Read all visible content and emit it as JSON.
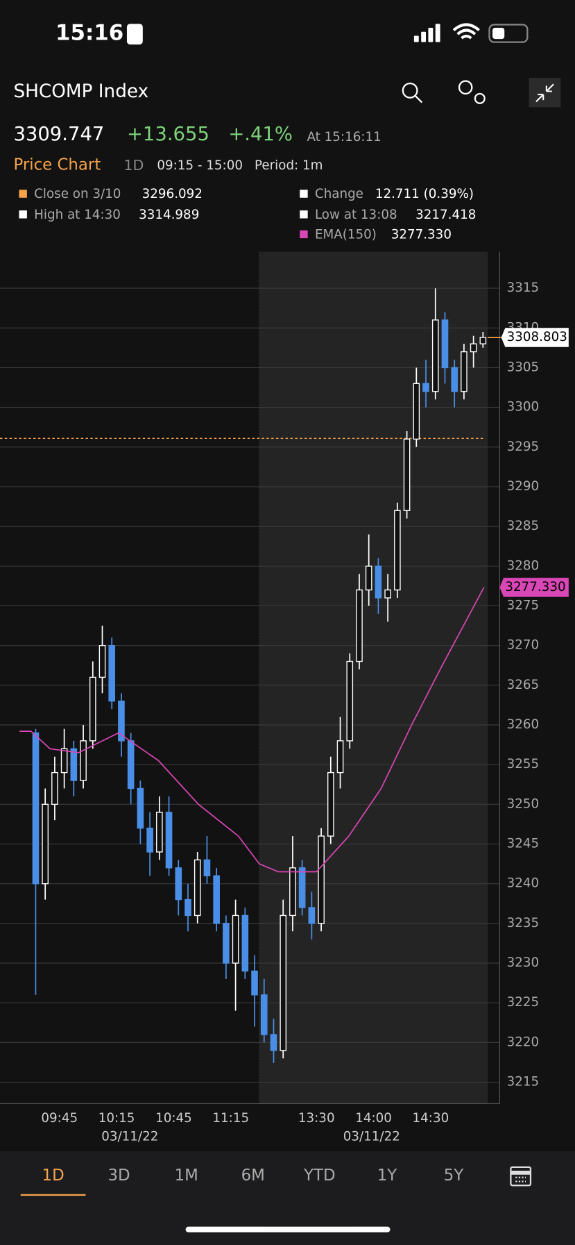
{
  "status": {
    "time": "15:16"
  },
  "header": {
    "title": "SHCOMP Index"
  },
  "quote": {
    "price": "3309.747",
    "change": "+13.655",
    "change_pct": "+.41%",
    "as_of": "At 15:16:11"
  },
  "chart_header": {
    "title": "Price Chart",
    "range": "1D",
    "session": "09:15 - 15:00",
    "period": "Period: 1m"
  },
  "legend": {
    "close_label": "Close on 3/10",
    "change_label": "Change",
    "change_value": "12.711 (0.39%)",
    "high_label": "High at 14:30",
    "low_label": "Low at 13:08"
  },
  "chart_data": {
    "type": "candlestick",
    "x": [
      0,
      5,
      10,
      15,
      20,
      25,
      30,
      35,
      40,
      45,
      50,
      55,
      60,
      65,
      70,
      75,
      80,
      85,
      90,
      95,
      100,
      105,
      110,
      115,
      120,
      125,
      130,
      135,
      140,
      145,
      150,
      155,
      160,
      165,
      170,
      175,
      180,
      185,
      190,
      195,
      200,
      205,
      210,
      215,
      220,
      225,
      230,
      235
    ],
    "open": [
      3259,
      3240,
      3250,
      3254,
      3257,
      3253,
      3258,
      3266,
      3270,
      3263,
      3258,
      3252,
      3247,
      3244,
      3249,
      3242,
      3238,
      3236,
      3243,
      3241,
      3235,
      3230,
      3236,
      3229,
      3226,
      3221,
      3219,
      3236,
      3242,
      3237,
      3235,
      3246,
      3254,
      3258,
      3268,
      3277,
      3280,
      3276,
      3277,
      3287,
      3296,
      3303,
      3302,
      3311,
      3305,
      3302,
      3307,
      3308
    ],
    "high": [
      3259.5,
      3252,
      3256,
      3259.5,
      3258,
      3260,
      3268,
      3272.5,
      3271,
      3264,
      3259,
      3253,
      3249,
      3251,
      3251,
      3243,
      3240,
      3244,
      3246,
      3242,
      3236,
      3238,
      3237,
      3231,
      3228,
      3223,
      3238,
      3246,
      3243,
      3239,
      3247,
      3256,
      3261,
      3269,
      3279,
      3284,
      3281,
      3279,
      3288,
      3297,
      3305,
      3306,
      3314.989,
      3312,
      3306,
      3308,
      3309,
      3309.5
    ],
    "low": [
      3226,
      3238,
      3248,
      3252,
      3251,
      3252,
      3257,
      3264,
      3262,
      3256,
      3250,
      3245,
      3241,
      3243,
      3241,
      3236,
      3234,
      3235,
      3240,
      3234,
      3228,
      3224,
      3228,
      3222,
      3220,
      3217.418,
      3218,
      3234,
      3236,
      3233,
      3234,
      3245,
      3252,
      3257,
      3267,
      3275,
      3274,
      3273,
      3276,
      3286,
      3295,
      3300,
      3301,
      3303,
      3300,
      3301,
      3305,
      3307.5
    ],
    "close": [
      3240,
      3250,
      3254,
      3257,
      3253,
      3258,
      3266,
      3270,
      3263,
      3258,
      3252,
      3247,
      3244,
      3249,
      3242,
      3238,
      3236,
      3243,
      3241,
      3235,
      3230,
      3236,
      3229,
      3226,
      3221,
      3219,
      3236,
      3242,
      3237,
      3235,
      3246,
      3254,
      3258,
      3268,
      3277,
      3280,
      3276,
      3277,
      3287,
      3296,
      3303,
      3302,
      3311,
      3305,
      3302,
      3307,
      3308,
      3308.803
    ],
    "up_color": "#ffffff",
    "down_color": "#4a8fe7",
    "prev_close": 3296.092,
    "prev_close_color": "#f5a34a",
    "high_value": 3314.989,
    "low_value": 3217.418,
    "last_price_label": "3308.803",
    "ema": {
      "name": "EMA(150)",
      "color": "#d946b5",
      "value_label": "3277.330",
      "x": [
        -6,
        0,
        10,
        25,
        46,
        67,
        88,
        109,
        120,
        130,
        150,
        167,
        184,
        200,
        215,
        238
      ],
      "values": [
        3259.2,
        3259.2,
        3257,
        3256.5,
        3259,
        3255.5,
        3250,
        3246,
        3242.5,
        3241.5,
        3241.5,
        3246,
        3252,
        3260,
        3267,
        3277.33
      ]
    },
    "afternoon_session": [
      120,
      240
    ],
    "xlim": [
      -16.25,
      246.25
    ],
    "ylim": [
      3212.3,
      3319.6
    ],
    "yticks": [
      3215,
      3220,
      3225,
      3230,
      3235,
      3240,
      3245,
      3250,
      3255,
      3260,
      3265,
      3270,
      3275,
      3280,
      3285,
      3290,
      3295,
      3300,
      3305,
      3310,
      3315
    ],
    "xticks": [
      {
        "value": 15,
        "label": "09:45"
      },
      {
        "value": 45,
        "label": "10:15"
      },
      {
        "value": 75,
        "label": "10:45"
      },
      {
        "value": 105,
        "label": "11:15"
      },
      {
        "value": 150,
        "label": "13:30"
      },
      {
        "value": 180,
        "label": "14:00"
      },
      {
        "value": 210,
        "label": "14:30"
      }
    ],
    "x_dates": [
      {
        "value": 52,
        "label": "03/11/22"
      },
      {
        "value": 179,
        "label": "03/11/22"
      }
    ],
    "grid": true
  },
  "tabs": {
    "items": [
      "1D",
      "3D",
      "1M",
      "6M",
      "YTD",
      "1Y",
      "5Y"
    ],
    "selected": 0
  }
}
